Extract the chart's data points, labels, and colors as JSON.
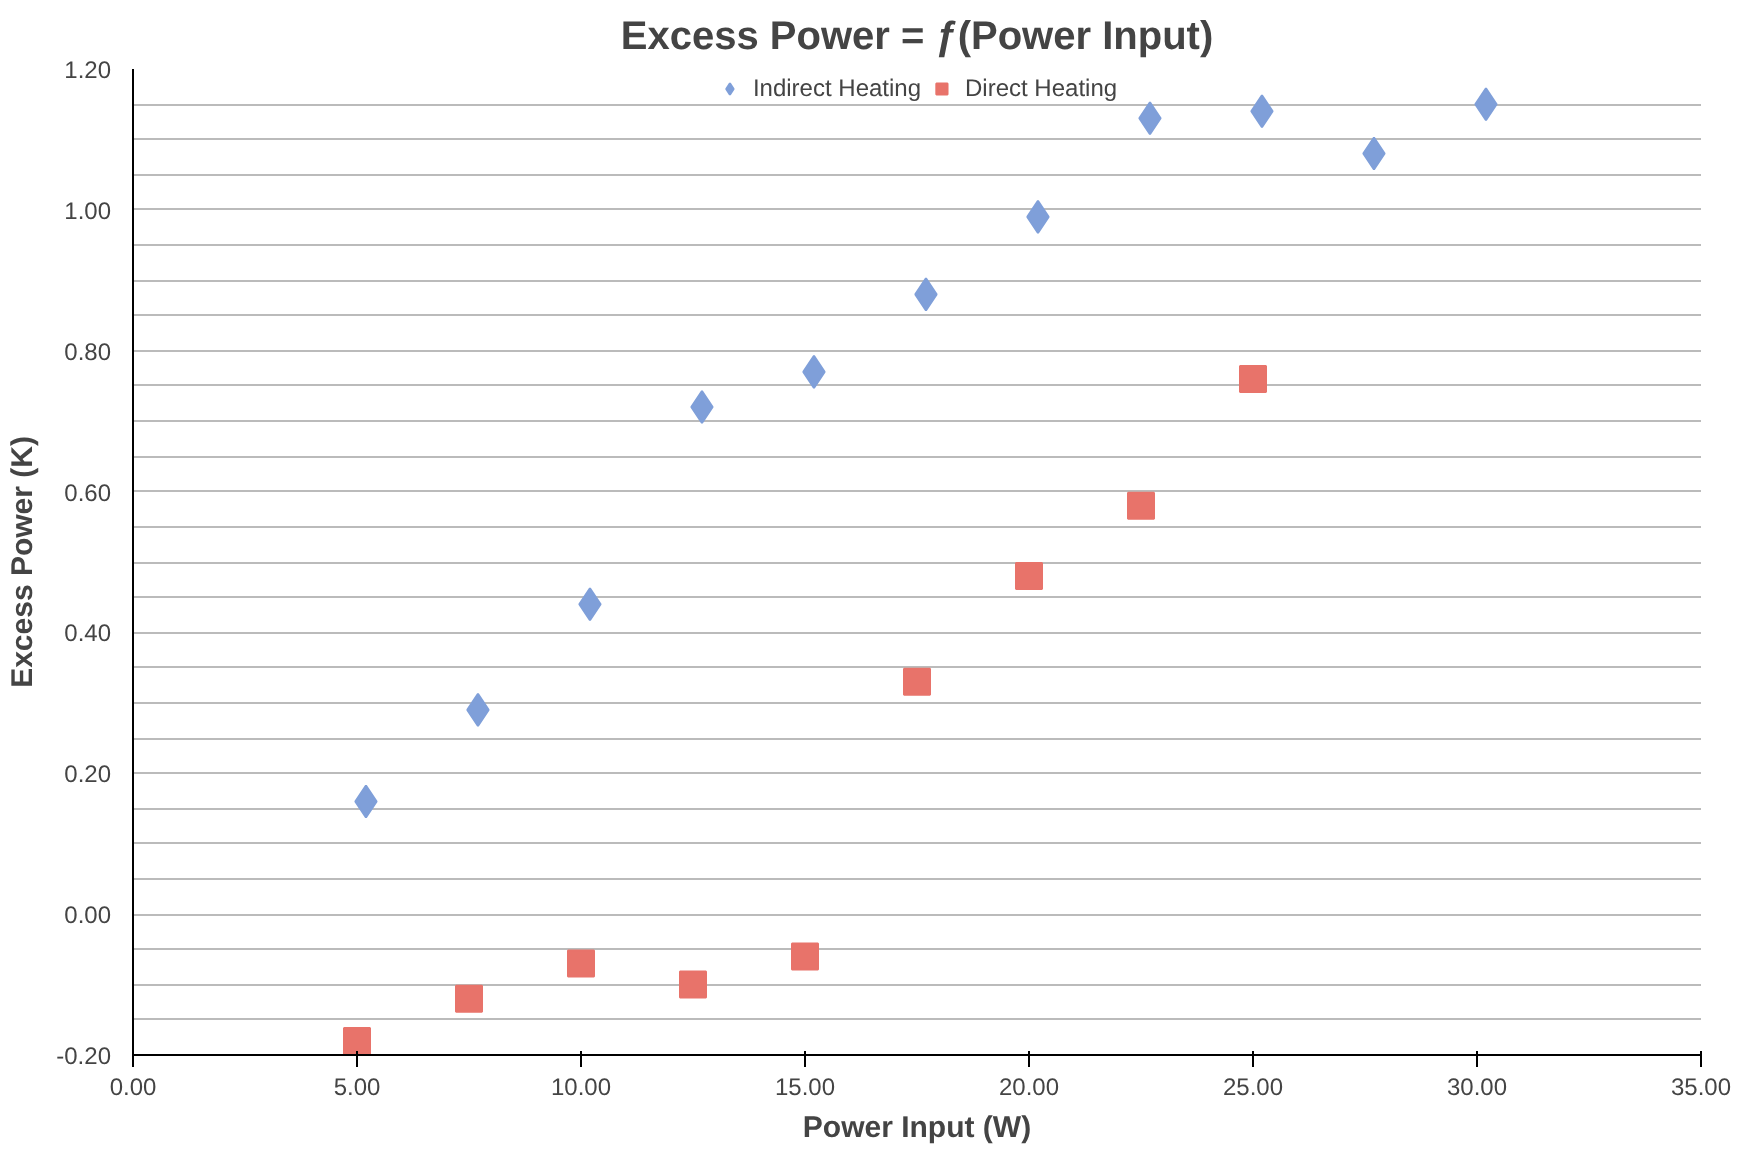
{
  "chart_data": {
    "type": "scatter",
    "title": "Excess Power = ƒ(Power Input)",
    "xlabel": "Power Input (W)",
    "ylabel": "Excess Power (K)",
    "xlim": [
      0,
      35
    ],
    "ylim": [
      -0.2,
      1.2
    ],
    "xticks": [
      {
        "value": 0,
        "label": "0.00"
      },
      {
        "value": 5,
        "label": "5.00"
      },
      {
        "value": 10,
        "label": "10.00"
      },
      {
        "value": 15,
        "label": "15.00"
      },
      {
        "value": 20,
        "label": "20.00"
      },
      {
        "value": 25,
        "label": "25.00"
      },
      {
        "value": 30,
        "label": "30.00"
      },
      {
        "value": 35,
        "label": "35.00"
      }
    ],
    "yticks": [
      {
        "value": -0.2,
        "label": "-0.20"
      },
      {
        "value": -0.15,
        "label": null
      },
      {
        "value": -0.1,
        "label": null
      },
      {
        "value": -0.05,
        "label": null
      },
      {
        "value": 0,
        "label": "0.00"
      },
      {
        "value": 0.05,
        "label": null
      },
      {
        "value": 0.1,
        "label": null
      },
      {
        "value": 0.15,
        "label": null
      },
      {
        "value": 0.2,
        "label": "0.20"
      },
      {
        "value": 0.25,
        "label": null
      },
      {
        "value": 0.3,
        "label": null
      },
      {
        "value": 0.35,
        "label": null
      },
      {
        "value": 0.4,
        "label": "0.40"
      },
      {
        "value": 0.45,
        "label": null
      },
      {
        "value": 0.5,
        "label": null
      },
      {
        "value": 0.55,
        "label": null
      },
      {
        "value": 0.6,
        "label": "0.60"
      },
      {
        "value": 0.65,
        "label": null
      },
      {
        "value": 0.7,
        "label": null
      },
      {
        "value": 0.75,
        "label": null
      },
      {
        "value": 0.8,
        "label": "0.80"
      },
      {
        "value": 0.85,
        "label": null
      },
      {
        "value": 0.9,
        "label": null
      },
      {
        "value": 0.95,
        "label": null
      },
      {
        "value": 1.0,
        "label": "1.00"
      },
      {
        "value": 1.05,
        "label": null
      },
      {
        "value": 1.1,
        "label": null
      },
      {
        "value": 1.15,
        "label": null
      },
      {
        "value": 1.2,
        "label": "1.20"
      }
    ],
    "grid": "y",
    "legend": "top",
    "series": [
      {
        "name": "Indirect Heating",
        "color": "#7f9fd9",
        "marker": "diamond",
        "x": [
          5.2,
          7.7,
          10.2,
          12.7,
          15.2,
          17.7,
          20.2,
          22.7,
          25.2,
          27.7,
          30.2
        ],
        "values": [
          0.16,
          0.29,
          0.44,
          0.72,
          0.77,
          0.88,
          0.99,
          1.13,
          1.14,
          1.08,
          1.15
        ]
      },
      {
        "name": "Direct Heating",
        "color": "#e8736a",
        "marker": "square",
        "x": [
          5,
          7.5,
          10,
          12.5,
          15,
          17.5,
          20,
          22.5,
          25
        ],
        "values": [
          -0.18,
          -0.12,
          -0.07,
          -0.1,
          -0.06,
          0.33,
          0.48,
          0.58,
          0.76
        ]
      }
    ]
  }
}
